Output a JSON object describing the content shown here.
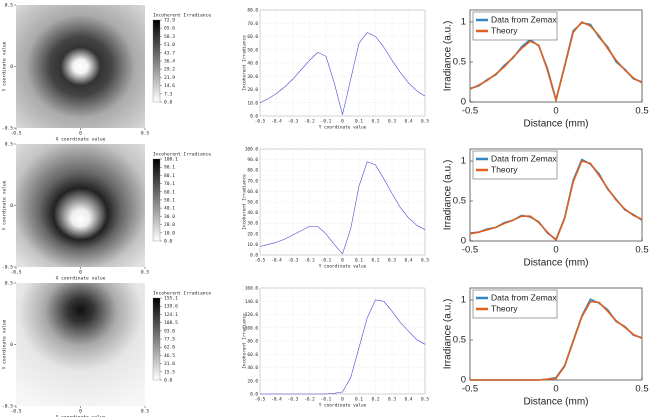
{
  "chart_data": [
    {
      "type": "heatmap",
      "xlabel": "X coordinate value",
      "ylabel": "Y coordinate value",
      "xlim": [
        -0.5,
        0.5
      ],
      "xticks": [
        -0.5,
        0,
        0.5
      ],
      "ylim": [
        -0.5,
        0.5
      ],
      "yticks": [
        -0.5,
        0,
        0.5
      ],
      "colorbar_title": "Incoherent Irradiance",
      "colorbar_ticks": [
        72.9,
        65.6,
        58.3,
        {
          "value": 51,
          "label": "51.0"
        },
        43.7,
        36.4,
        29.2,
        21.9,
        14.6,
        7.3,
        {
          "value": 0,
          "label": "0.0"
        }
      ]
    },
    {
      "type": "line",
      "xlabel": "Y coordinate value",
      "ylabel": "Incoherent Irradiance",
      "grid": true,
      "xlim": [
        -0.5,
        0.5
      ],
      "xticks": [
        -0.5,
        -0.4,
        -0.3,
        -0.2,
        -0.1,
        0,
        0.1,
        0.2,
        0.3,
        0.4,
        0.5
      ],
      "ylim": [
        0,
        80
      ],
      "yticks": [
        {
          "value": 0,
          "label": "0.0"
        },
        {
          "value": 10,
          "label": "10.0"
        },
        {
          "value": 20,
          "label": "20.0"
        },
        {
          "value": 30,
          "label": "30.0"
        },
        {
          "value": 40,
          "label": "40.0"
        },
        {
          "value": 50,
          "label": "50.0"
        },
        {
          "value": 60,
          "label": "60.0"
        },
        {
          "value": 70,
          "label": "70.0"
        },
        {
          "value": 80,
          "label": "80.0"
        }
      ],
      "x": [
        -0.5,
        -0.45,
        -0.4,
        -0.35,
        -0.3,
        -0.25,
        -0.2,
        -0.15,
        -0.1,
        -0.05,
        0,
        0.05,
        0.1,
        0.15,
        0.2,
        0.25,
        0.3,
        0.35,
        0.4,
        0.45,
        0.5
      ],
      "series": [
        {
          "color": "#4a4ad6",
          "values": [
            10,
            13,
            17,
            22,
            28,
            35,
            42,
            48,
            45,
            25,
            1,
            28,
            55,
            63,
            60,
            52,
            42,
            33,
            25,
            19,
            15
          ]
        }
      ]
    },
    {
      "type": "line",
      "xlabel": "Distance (mm)",
      "ylabel": "Irradiance (a.u.)",
      "grid": false,
      "legend": "upper left",
      "xlim": [
        -0.5,
        0.5
      ],
      "xticks": [
        -0.5,
        0,
        0.5
      ],
      "ylim": [
        0,
        1.15
      ],
      "yticks": [
        0,
        0.5,
        1
      ],
      "x": [
        -0.5,
        -0.45,
        -0.4,
        -0.35,
        -0.3,
        -0.25,
        -0.2,
        -0.15,
        -0.1,
        -0.05,
        0,
        0.05,
        0.1,
        0.15,
        0.2,
        0.25,
        0.3,
        0.35,
        0.4,
        0.45,
        0.5
      ],
      "series": [
        {
          "name": "Data from Zemax",
          "color": "#2f86c4",
          "values": [
            0.17,
            0.2,
            0.28,
            0.34,
            0.46,
            0.55,
            0.69,
            0.78,
            0.7,
            0.42,
            0.03,
            0.45,
            0.89,
            0.99,
            0.97,
            0.81,
            0.69,
            0.5,
            0.41,
            0.29,
            0.25
          ]
        },
        {
          "name": "Theory",
          "color": "#e0601f",
          "values": [
            0.16,
            0.21,
            0.27,
            0.35,
            0.44,
            0.56,
            0.67,
            0.76,
            0.71,
            0.4,
            0.02,
            0.44,
            0.87,
            1,
            0.95,
            0.83,
            0.67,
            0.52,
            0.4,
            0.3,
            0.24
          ]
        }
      ]
    },
    {
      "type": "heatmap",
      "xlabel": "X coordinate value",
      "ylabel": "Y coordinate value",
      "xlim": [
        -0.5,
        0.5
      ],
      "xticks": [
        -0.5,
        0,
        0.5
      ],
      "ylim": [
        -0.5,
        0.5
      ],
      "yticks": [
        -0.5,
        0,
        0.5
      ],
      "colorbar_title": "Incoherent Irradiance",
      "colorbar_ticks": [
        100.1,
        90.1,
        80.1,
        70.1,
        60.1,
        50.1,
        40.1,
        {
          "value": 30,
          "label": "30.0"
        },
        {
          "value": 20,
          "label": "20.0"
        },
        {
          "value": 10,
          "label": "10.0"
        },
        {
          "value": 0,
          "label": "0.0"
        }
      ]
    },
    {
      "type": "line",
      "xlabel": "Y coordinate value",
      "ylabel": "Incoherent Irradiance",
      "grid": true,
      "xlim": [
        -0.5,
        0.5
      ],
      "xticks": [
        -0.5,
        -0.4,
        -0.3,
        -0.2,
        -0.1,
        0,
        0.1,
        0.2,
        0.3,
        0.4,
        0.5
      ],
      "ylim": [
        0,
        100
      ],
      "yticks": [
        {
          "value": 0,
          "label": "0.0"
        },
        {
          "value": 10,
          "label": "10.0"
        },
        {
          "value": 20,
          "label": "20.0"
        },
        {
          "value": 30,
          "label": "30.0"
        },
        {
          "value": 40,
          "label": "40.0"
        },
        {
          "value": 50,
          "label": "50.0"
        },
        {
          "value": 60,
          "label": "60.0"
        },
        {
          "value": 70,
          "label": "70.0"
        },
        {
          "value": 80,
          "label": "80.0"
        },
        {
          "value": 90,
          "label": "90.0"
        },
        {
          "value": 100,
          "label": "100.0"
        }
      ],
      "x": [
        -0.5,
        -0.45,
        -0.4,
        -0.35,
        -0.3,
        -0.25,
        -0.2,
        -0.15,
        -0.1,
        -0.05,
        0,
        0.05,
        0.1,
        0.15,
        0.2,
        0.25,
        0.3,
        0.35,
        0.4,
        0.45,
        0.5
      ],
      "series": [
        {
          "color": "#4a4ad6",
          "values": [
            8,
            10,
            12,
            15,
            19,
            23,
            27,
            27,
            20,
            10,
            1,
            25,
            65,
            88,
            85,
            72,
            58,
            45,
            35,
            28,
            24
          ]
        }
      ]
    },
    {
      "type": "line",
      "xlabel": "Distance (mm)",
      "ylabel": "Irradiance (a.u.)",
      "grid": false,
      "legend": "upper left",
      "xlim": [
        -0.5,
        0.5
      ],
      "xticks": [
        -0.5,
        0,
        0.5
      ],
      "ylim": [
        0,
        1.15
      ],
      "yticks": [
        0,
        0.5,
        1
      ],
      "x": [
        -0.5,
        -0.45,
        -0.4,
        -0.35,
        -0.3,
        -0.25,
        -0.2,
        -0.15,
        -0.1,
        -0.05,
        0,
        0.05,
        0.1,
        0.15,
        0.2,
        0.25,
        0.3,
        0.35,
        0.4,
        0.45,
        0.5
      ],
      "series": [
        {
          "name": "Data from Zemax",
          "color": "#2f86c4",
          "values": [
            0.1,
            0.11,
            0.15,
            0.17,
            0.23,
            0.26,
            0.32,
            0.3,
            0.24,
            0.1,
            0.02,
            0.29,
            0.76,
            1.02,
            0.96,
            0.84,
            0.65,
            0.52,
            0.39,
            0.33,
            0.26
          ]
        },
        {
          "name": "Theory",
          "color": "#e0601f",
          "values": [
            0.09,
            0.11,
            0.14,
            0.17,
            0.22,
            0.26,
            0.31,
            0.31,
            0.23,
            0.11,
            0.01,
            0.28,
            0.74,
            1,
            0.97,
            0.82,
            0.66,
            0.51,
            0.4,
            0.32,
            0.27
          ]
        }
      ]
    },
    {
      "type": "heatmap",
      "xlabel": "X coordinate value",
      "ylabel": "Y coordinate value",
      "xlim": [
        -0.5,
        0.5
      ],
      "xticks": [
        -0.5,
        0,
        0.5
      ],
      "ylim": [
        -0.5,
        0.5
      ],
      "yticks": [
        -0.5,
        0,
        0.5
      ],
      "colorbar_title": "Incoherent Irradiance",
      "colorbar_ticks": [
        155.1,
        139.6,
        124.1,
        108.5,
        {
          "value": 93,
          "label": "93.0"
        },
        77.5,
        {
          "value": 62,
          "label": "62.0"
        },
        46.5,
        {
          "value": 31,
          "label": "31.0"
        },
        15.5,
        {
          "value": 0,
          "label": "0.0"
        }
      ]
    },
    {
      "type": "line",
      "xlabel": "Y coordinate value",
      "ylabel": "Incoherent Irradiance",
      "grid": true,
      "xlim": [
        -0.5,
        0.5
      ],
      "xticks": [
        -0.5,
        -0.4,
        -0.3,
        -0.2,
        -0.1,
        0,
        0.1,
        0.2,
        0.3,
        0.4,
        0.5
      ],
      "ylim": [
        0,
        160
      ],
      "yticks": [
        {
          "value": 0,
          "label": "0.0"
        },
        {
          "value": 20,
          "label": "20.0"
        },
        {
          "value": 40,
          "label": "40.0"
        },
        {
          "value": 60,
          "label": "60.0"
        },
        {
          "value": 80,
          "label": "80.0"
        },
        {
          "value": 100,
          "label": "100.0"
        },
        {
          "value": 120,
          "label": "120.0"
        },
        {
          "value": 140,
          "label": "140.0"
        },
        {
          "value": 160,
          "label": "160.0"
        }
      ],
      "x": [
        -0.5,
        -0.45,
        -0.4,
        -0.35,
        -0.3,
        -0.25,
        -0.2,
        -0.15,
        -0.1,
        -0.05,
        0,
        0.05,
        0.1,
        0.15,
        0.2,
        0.25,
        0.3,
        0.35,
        0.4,
        0.45,
        0.5
      ],
      "series": [
        {
          "color": "#4a4ad6",
          "values": [
            0,
            0,
            0,
            0,
            0,
            0,
            0,
            0,
            0,
            1,
            3,
            25,
            70,
            115,
            142,
            140,
            125,
            108,
            95,
            82,
            75
          ]
        }
      ]
    },
    {
      "type": "line",
      "xlabel": "Distance (mm)",
      "ylabel": "Irradiance (a.u.)",
      "grid": false,
      "legend": "upper left",
      "xlim": [
        -0.5,
        0.5
      ],
      "xticks": [
        -0.5,
        0,
        0.5
      ],
      "ylim": [
        0,
        1.15
      ],
      "yticks": [
        0,
        0.5,
        1
      ],
      "x": [
        -0.5,
        -0.45,
        -0.4,
        -0.35,
        -0.3,
        -0.25,
        -0.2,
        -0.15,
        -0.1,
        -0.05,
        0,
        0.05,
        0.1,
        0.15,
        0.2,
        0.25,
        0.3,
        0.35,
        0.4,
        0.45,
        0.5
      ],
      "series": [
        {
          "name": "Data from Zemax",
          "color": "#2f86c4",
          "values": [
            0,
            0,
            0,
            0,
            0,
            0,
            0,
            0,
            0,
            0.01,
            0.03,
            0.18,
            0.49,
            0.8,
            1.01,
            0.96,
            0.88,
            0.73,
            0.67,
            0.56,
            0.53
          ]
        },
        {
          "name": "Theory",
          "color": "#e0601f",
          "values": [
            0,
            0,
            0,
            0,
            0,
            0,
            0,
            0,
            0,
            0.01,
            0.02,
            0.17,
            0.48,
            0.79,
            0.98,
            0.97,
            0.86,
            0.74,
            0.66,
            0.57,
            0.52
          ]
        }
      ]
    }
  ]
}
